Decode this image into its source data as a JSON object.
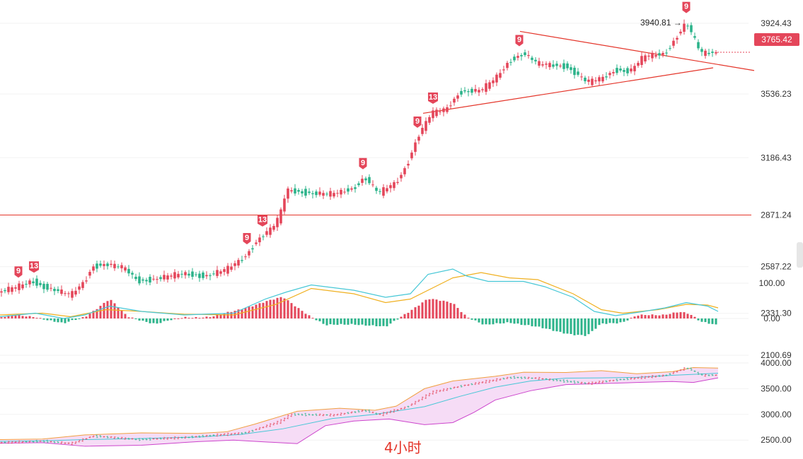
{
  "timeframe_label": "4小时",
  "last_price": "3765.42",
  "high_label": "3940.81 →",
  "colors": {
    "up": "#e4465a",
    "down": "#2bb38a",
    "red_line": "#e4352a",
    "dif": "#46c7d6",
    "dea": "#f0b020",
    "boll_upper": "#f0a040",
    "boll_mid": "#46c7d6",
    "boll_lower": "#cc44cc",
    "boll_fill": "#f6dcf6"
  },
  "chart_data": [
    {
      "type": "candlestick",
      "name": "price",
      "y_ticks": [
        "3924.43",
        "3536.23",
        "3186.43",
        "2871.24",
        "2587.22",
        "2331.30",
        "2100.69"
      ],
      "horizontal_line": 2871.24,
      "last": 3765.42,
      "high_annotation": 3940.81,
      "td_markers": [
        {
          "label": "9",
          "at": 2490
        },
        {
          "label": "13",
          "at": 2540
        },
        {
          "label": "9",
          "at": 2760
        },
        {
          "label": "13",
          "at": 2880
        },
        {
          "label": "9",
          "at": 3120
        },
        {
          "label": "9",
          "at": 3520
        },
        {
          "label": "13",
          "at": 3520
        },
        {
          "label": "9",
          "at": 3820
        },
        {
          "label": "9",
          "at": 3950
        }
      ],
      "waypoints": [
        [
          0,
          2450
        ],
        [
          25,
          2475
        ],
        [
          45,
          2510
        ],
        [
          60,
          2480
        ],
        [
          100,
          2430
        ],
        [
          120,
          2510
        ],
        [
          130,
          2590
        ],
        [
          150,
          2600
        ],
        [
          175,
          2580
        ],
        [
          195,
          2510
        ],
        [
          220,
          2520
        ],
        [
          260,
          2550
        ],
        [
          290,
          2535
        ],
        [
          320,
          2570
        ],
        [
          345,
          2640
        ],
        [
          365,
          2740
        ],
        [
          385,
          2800
        ],
        [
          395,
          2860
        ],
        [
          405,
          3010
        ],
        [
          440,
          2990
        ],
        [
          470,
          2985
        ],
        [
          500,
          3020
        ],
        [
          515,
          3080
        ],
        [
          535,
          2990
        ],
        [
          560,
          3050
        ],
        [
          575,
          3150
        ],
        [
          590,
          3300
        ],
        [
          610,
          3430
        ],
        [
          630,
          3450
        ],
        [
          650,
          3550
        ],
        [
          680,
          3555
        ],
        [
          700,
          3620
        ],
        [
          720,
          3720
        ],
        [
          740,
          3760
        ],
        [
          760,
          3700
        ],
        [
          800,
          3690
        ],
        [
          830,
          3600
        ],
        [
          850,
          3620
        ],
        [
          870,
          3670
        ],
        [
          890,
          3660
        ],
        [
          910,
          3740
        ],
        [
          940,
          3760
        ],
        [
          970,
          3930
        ],
        [
          990,
          3760
        ],
        [
          1015,
          3765
        ]
      ]
    },
    {
      "type": "macd",
      "name": "MACD",
      "y_ticks": [
        "100.00",
        "0.00"
      ],
      "hist_waypoints": [
        [
          0,
          3
        ],
        [
          20,
          8
        ],
        [
          50,
          5
        ],
        [
          90,
          -15
        ],
        [
          120,
          5
        ],
        [
          155,
          55
        ],
        [
          180,
          5
        ],
        [
          220,
          -15
        ],
        [
          260,
          3
        ],
        [
          300,
          5
        ],
        [
          330,
          20
        ],
        [
          370,
          45
        ],
        [
          400,
          60
        ],
        [
          440,
          5
        ],
        [
          460,
          -20
        ],
        [
          500,
          -15
        ],
        [
          545,
          -25
        ],
        [
          570,
          10
        ],
        [
          605,
          55
        ],
        [
          640,
          45
        ],
        [
          660,
          5
        ],
        [
          685,
          -20
        ],
        [
          720,
          -10
        ],
        [
          760,
          -25
        ],
        [
          810,
          -45
        ],
        [
          830,
          -50
        ],
        [
          850,
          -15
        ],
        [
          880,
          -10
        ],
        [
          900,
          8
        ],
        [
          935,
          10
        ],
        [
          960,
          20
        ],
        [
          975,
          12
        ],
        [
          990,
          -10
        ],
        [
          1015,
          -18
        ]
      ],
      "dif_waypoints": [
        [
          0,
          5
        ],
        [
          50,
          15
        ],
        [
          90,
          0
        ],
        [
          120,
          10
        ],
        [
          155,
          35
        ],
        [
          200,
          20
        ],
        [
          260,
          10
        ],
        [
          330,
          15
        ],
        [
          375,
          55
        ],
        [
          405,
          75
        ],
        [
          440,
          95
        ],
        [
          500,
          80
        ],
        [
          545,
          60
        ],
        [
          580,
          70
        ],
        [
          605,
          125
        ],
        [
          640,
          140
        ],
        [
          660,
          120
        ],
        [
          690,
          105
        ],
        [
          740,
          105
        ],
        [
          770,
          90
        ],
        [
          810,
          60
        ],
        [
          840,
          20
        ],
        [
          870,
          8
        ],
        [
          910,
          20
        ],
        [
          940,
          30
        ],
        [
          970,
          45
        ],
        [
          1000,
          35
        ],
        [
          1015,
          20
        ]
      ],
      "dea_waypoints": [
        [
          0,
          10
        ],
        [
          60,
          15
        ],
        [
          100,
          5
        ],
        [
          150,
          25
        ],
        [
          200,
          20
        ],
        [
          260,
          12
        ],
        [
          330,
          10
        ],
        [
          390,
          40
        ],
        [
          440,
          85
        ],
        [
          500,
          70
        ],
        [
          545,
          45
        ],
        [
          580,
          55
        ],
        [
          640,
          115
        ],
        [
          680,
          130
        ],
        [
          720,
          115
        ],
        [
          760,
          110
        ],
        [
          810,
          70
        ],
        [
          850,
          25
        ],
        [
          880,
          15
        ],
        [
          930,
          25
        ],
        [
          970,
          40
        ],
        [
          1000,
          38
        ],
        [
          1015,
          30
        ]
      ]
    },
    {
      "type": "bollinger",
      "name": "BOLL",
      "y_ticks": [
        "4000.00",
        "3500.00",
        "3000.00",
        "2500.00"
      ],
      "mid_waypoints": [
        [
          0,
          2475
        ],
        [
          60,
          2485
        ],
        [
          120,
          2510
        ],
        [
          200,
          2530
        ],
        [
          280,
          2560
        ],
        [
          340,
          2610
        ],
        [
          400,
          2720
        ],
        [
          470,
          2920
        ],
        [
          530,
          3000
        ],
        [
          600,
          3150
        ],
        [
          650,
          3350
        ],
        [
          700,
          3530
        ],
        [
          750,
          3650
        ],
        [
          800,
          3705
        ],
        [
          850,
          3710
        ],
        [
          900,
          3720
        ],
        [
          950,
          3760
        ],
        [
          1015,
          3800
        ]
      ],
      "upper_waypoints": [
        [
          0,
          2510
        ],
        [
          60,
          2520
        ],
        [
          120,
          2600
        ],
        [
          200,
          2640
        ],
        [
          280,
          2630
        ],
        [
          320,
          2660
        ],
        [
          360,
          2810
        ],
        [
          420,
          3060
        ],
        [
          480,
          3120
        ],
        [
          530,
          3080
        ],
        [
          560,
          3160
        ],
        [
          600,
          3500
        ],
        [
          640,
          3650
        ],
        [
          700,
          3740
        ],
        [
          740,
          3820
        ],
        [
          800,
          3815
        ],
        [
          850,
          3850
        ],
        [
          900,
          3790
        ],
        [
          950,
          3830
        ],
        [
          980,
          3910
        ],
        [
          1015,
          3900
        ]
      ],
      "lower_waypoints": [
        [
          0,
          2440
        ],
        [
          60,
          2450
        ],
        [
          120,
          2380
        ],
        [
          200,
          2400
        ],
        [
          280,
          2470
        ],
        [
          330,
          2500
        ],
        [
          380,
          2460
        ],
        [
          420,
          2430
        ],
        [
          460,
          2780
        ],
        [
          500,
          2870
        ],
        [
          550,
          2910
        ],
        [
          600,
          2800
        ],
        [
          640,
          2840
        ],
        [
          670,
          3040
        ],
        [
          700,
          3280
        ],
        [
          750,
          3460
        ],
        [
          800,
          3580
        ],
        [
          850,
          3600
        ],
        [
          900,
          3620
        ],
        [
          950,
          3640
        ],
        [
          980,
          3620
        ],
        [
          1015,
          3710
        ]
      ],
      "price_waypoints": [
        [
          0,
          2450
        ],
        [
          60,
          2480
        ],
        [
          100,
          2430
        ],
        [
          130,
          2580
        ],
        [
          195,
          2510
        ],
        [
          260,
          2550
        ],
        [
          345,
          2640
        ],
        [
          395,
          2860
        ],
        [
          410,
          3000
        ],
        [
          470,
          2985
        ],
        [
          515,
          3080
        ],
        [
          535,
          2990
        ],
        [
          575,
          3150
        ],
        [
          610,
          3430
        ],
        [
          650,
          3550
        ],
        [
          720,
          3720
        ],
        [
          760,
          3700
        ],
        [
          830,
          3600
        ],
        [
          870,
          3670
        ],
        [
          940,
          3760
        ],
        [
          970,
          3910
        ],
        [
          990,
          3760
        ],
        [
          1015,
          3765
        ]
      ]
    }
  ]
}
